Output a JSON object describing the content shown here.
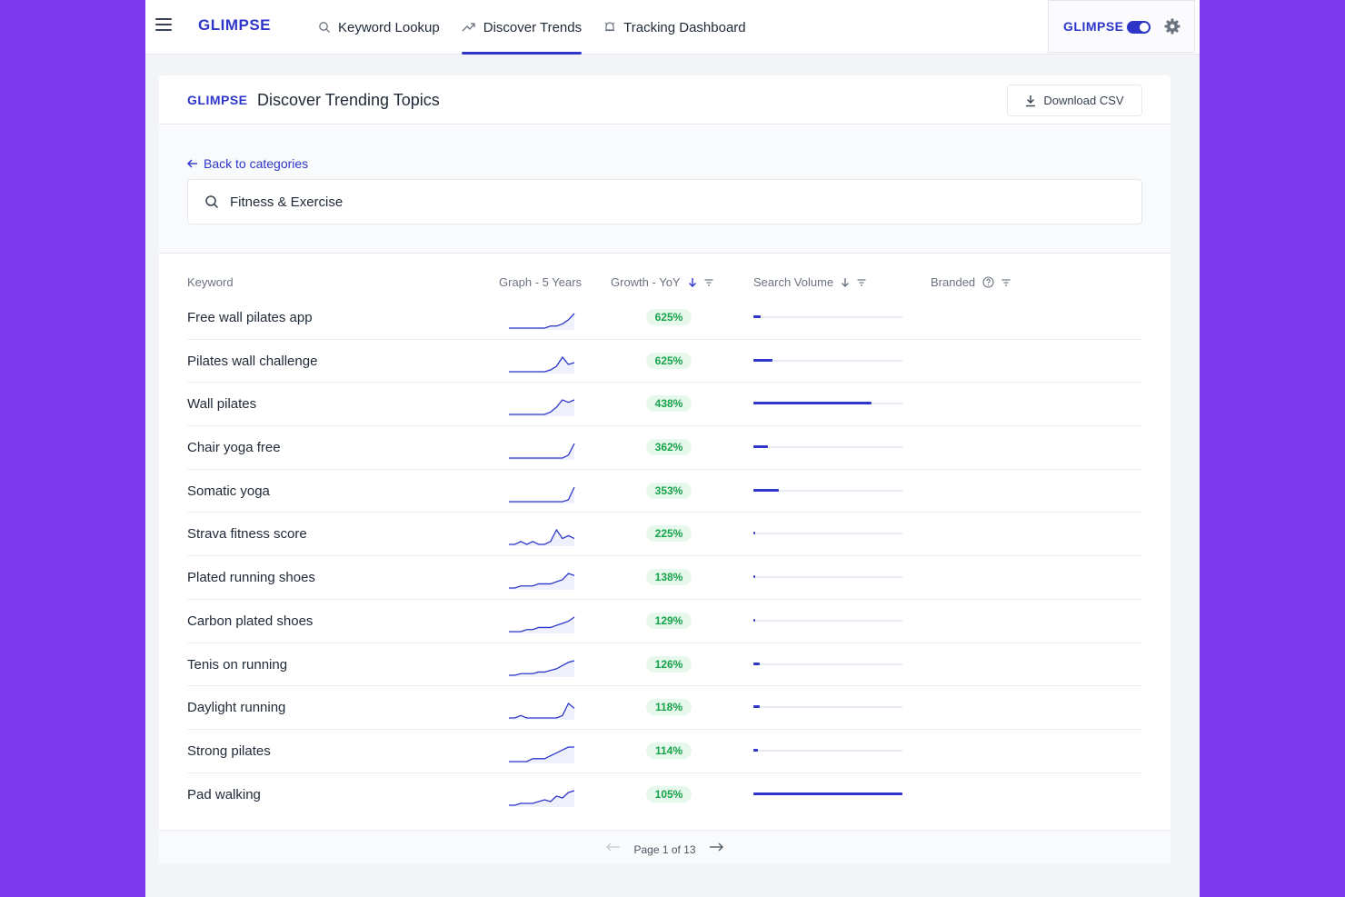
{
  "brand": {
    "name": "GLIMPSE",
    "accent": "#2d36c9"
  },
  "nav": {
    "items": [
      {
        "label": "Keyword Lookup",
        "icon": "search-icon",
        "active": false
      },
      {
        "label": "Discover Trends",
        "icon": "trending-icon",
        "active": true
      },
      {
        "label": "Tracking Dashboard",
        "icon": "bell-icon",
        "active": false
      }
    ]
  },
  "header": {
    "title": "Discover Trending Topics",
    "download_label": "Download CSV"
  },
  "filter": {
    "back_label": "Back to categories",
    "search_value": "Fitness & Exercise"
  },
  "table": {
    "columns": {
      "keyword": "Keyword",
      "graph": "Graph - 5 Years",
      "growth": "Growth - YoY",
      "volume": "Search Volume",
      "branded": "Branded"
    },
    "rows": [
      {
        "keyword": "Free wall pilates app",
        "growth": "625%",
        "volume": 0.05,
        "trend": [
          2,
          2,
          2,
          2,
          2,
          2,
          2,
          3,
          3,
          4,
          6,
          9
        ]
      },
      {
        "keyword": "Pilates wall challenge",
        "growth": "625%",
        "volume": 0.13,
        "trend": [
          1,
          1,
          1,
          1,
          1,
          1,
          1,
          2,
          4,
          9,
          5,
          6
        ]
      },
      {
        "keyword": "Wall pilates",
        "growth": "438%",
        "volume": 0.79,
        "trend": [
          1,
          1,
          1,
          1,
          1,
          1,
          1,
          2,
          4,
          7,
          6,
          7
        ]
      },
      {
        "keyword": "Chair yoga free",
        "growth": "362%",
        "volume": 0.1,
        "trend": [
          1,
          1,
          1,
          1,
          1,
          1,
          1,
          1,
          1,
          1,
          2,
          6
        ]
      },
      {
        "keyword": "Somatic yoga",
        "growth": "353%",
        "volume": 0.17,
        "trend": [
          1,
          1,
          1,
          1,
          1,
          1,
          1,
          1,
          1,
          1,
          2,
          9
        ]
      },
      {
        "keyword": "Strava fitness score",
        "growth": "225%",
        "volume": 0.01,
        "trend": [
          3,
          3,
          4,
          3,
          4,
          3,
          3,
          4,
          8,
          5,
          6,
          5
        ]
      },
      {
        "keyword": "Plated running shoes",
        "growth": "138%",
        "volume": 0.01,
        "trend": [
          1,
          1,
          2,
          2,
          2,
          3,
          3,
          3,
          4,
          5,
          8,
          7
        ]
      },
      {
        "keyword": "Carbon plated shoes",
        "growth": "129%",
        "volume": 0.01,
        "trend": [
          1,
          1,
          1,
          2,
          2,
          3,
          3,
          3,
          4,
          5,
          6,
          8
        ]
      },
      {
        "keyword": "Tenis on running",
        "growth": "126%",
        "volume": 0.04,
        "trend": [
          1,
          1,
          2,
          2,
          2,
          3,
          3,
          4,
          5,
          7,
          9,
          10
        ]
      },
      {
        "keyword": "Daylight running",
        "growth": "118%",
        "volume": 0.04,
        "trend": [
          2,
          2,
          3,
          2,
          2,
          2,
          2,
          2,
          2,
          3,
          8,
          6
        ]
      },
      {
        "keyword": "Strong pilates",
        "growth": "114%",
        "volume": 0.03,
        "trend": [
          1,
          1,
          1,
          1,
          2,
          2,
          2,
          3,
          4,
          5,
          6,
          6
        ]
      },
      {
        "keyword": "Pad walking",
        "growth": "105%",
        "volume": 1.0,
        "trend": [
          1,
          1,
          2,
          2,
          2,
          3,
          4,
          3,
          6,
          5,
          8,
          9
        ]
      }
    ]
  },
  "pagination": {
    "label": "Page 1 of 13"
  }
}
